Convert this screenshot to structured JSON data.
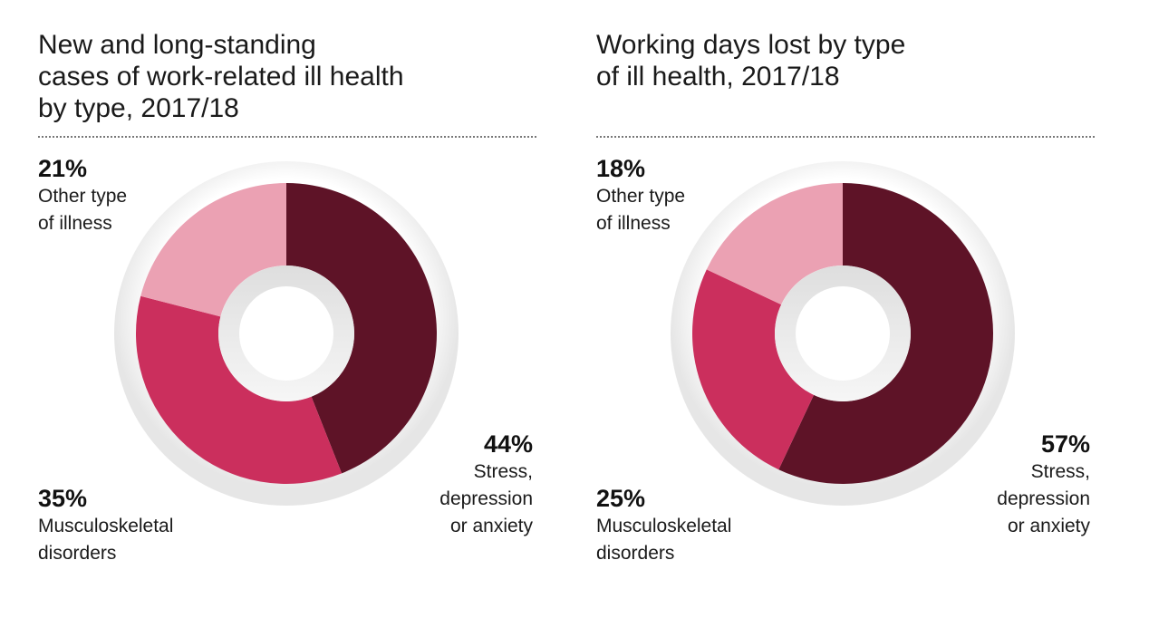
{
  "colors": {
    "stress": "#5e1327",
    "musculoskeletal": "#cb2f5d",
    "other": "#eba1b3",
    "ring_outer": "#e6e6e6",
    "hub": "#ececec"
  },
  "chart_data": [
    {
      "type": "pie",
      "title": "New and long-standing cases of work-related ill health by type, 2017/18",
      "title_lines": [
        "New and long-standing",
        "cases of work-related ill health",
        "by type, 2017/18"
      ],
      "categories": [
        "Stress, depression or anxiety",
        "Musculoskeletal disorders",
        "Other type of illness"
      ],
      "values": [
        44,
        35,
        21
      ],
      "labels": [
        {
          "pct": "44%",
          "lines": [
            "Stress,",
            "depression",
            "or anxiety"
          ]
        },
        {
          "pct": "35%",
          "lines": [
            "Musculoskeletal",
            "disorders"
          ]
        },
        {
          "pct": "21%",
          "lines": [
            "Other type",
            "of illness"
          ]
        }
      ]
    },
    {
      "type": "pie",
      "title": "Working days lost by type of ill health, 2017/18",
      "title_lines": [
        "Working days lost by type",
        "of ill health, 2017/18"
      ],
      "categories": [
        "Stress, depression or anxiety",
        "Musculoskeletal disorders",
        "Other type of illness"
      ],
      "values": [
        57,
        25,
        18
      ],
      "labels": [
        {
          "pct": "57%",
          "lines": [
            "Stress,",
            "depression",
            "or anxiety"
          ]
        },
        {
          "pct": "25%",
          "lines": [
            "Musculoskeletal",
            "disorders"
          ]
        },
        {
          "pct": "18%",
          "lines": [
            "Other type",
            "of illness"
          ]
        }
      ]
    }
  ]
}
